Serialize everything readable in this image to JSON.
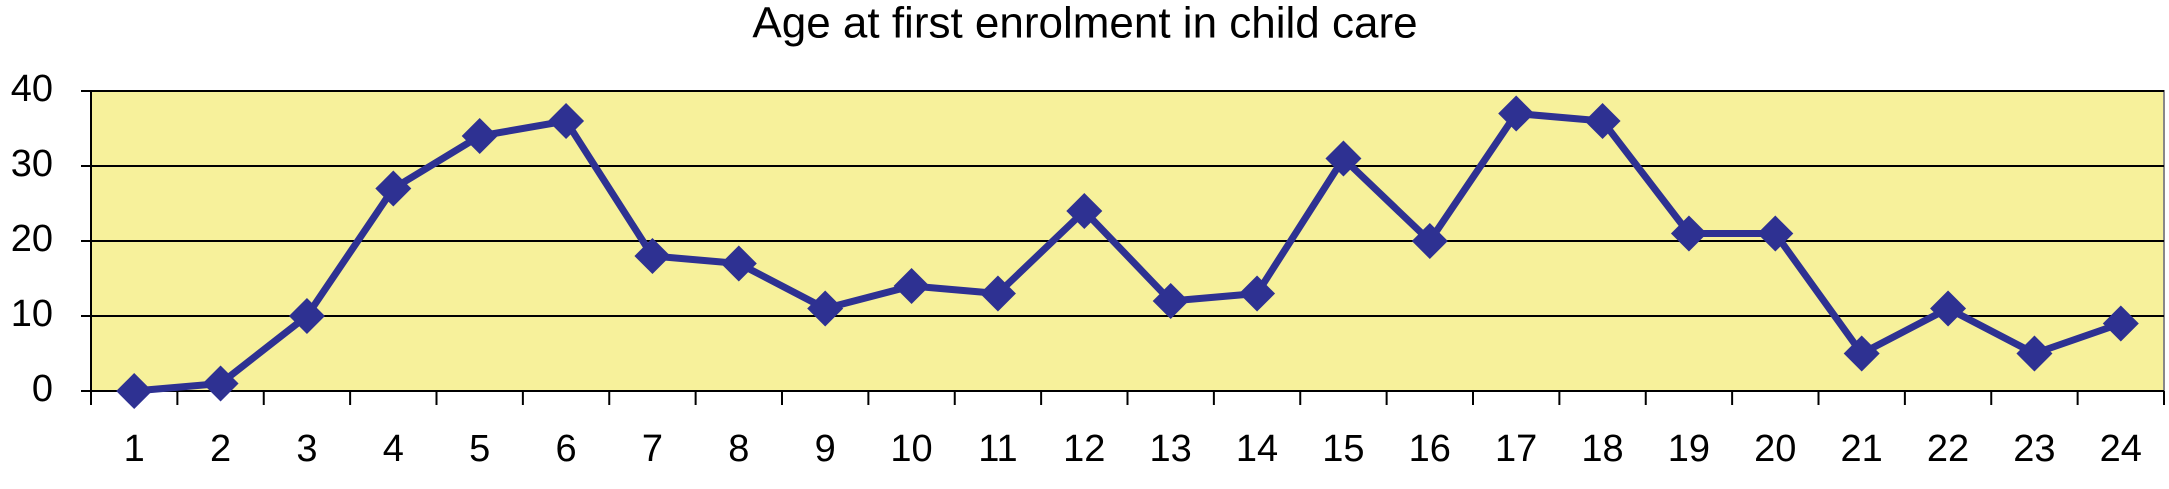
{
  "chart_data": {
    "type": "line",
    "title": "Age at first enrolment in child care",
    "categories": [
      "1",
      "2",
      "3",
      "4",
      "5",
      "6",
      "7",
      "8",
      "9",
      "10",
      "11",
      "12",
      "13",
      "14",
      "15",
      "16",
      "17",
      "18",
      "19",
      "20",
      "21",
      "22",
      "23",
      "24"
    ],
    "values": [
      0,
      1,
      10,
      27,
      34,
      36,
      18,
      17,
      11,
      14,
      13,
      24,
      12,
      13,
      31,
      20,
      37,
      36,
      21,
      21,
      5,
      11,
      5,
      9
    ],
    "color": "#2e3192",
    "background": "#f7f19b",
    "ylim": [
      0,
      40
    ],
    "yticks": [
      0,
      10,
      20,
      30,
      40
    ],
    "grid": true
  }
}
